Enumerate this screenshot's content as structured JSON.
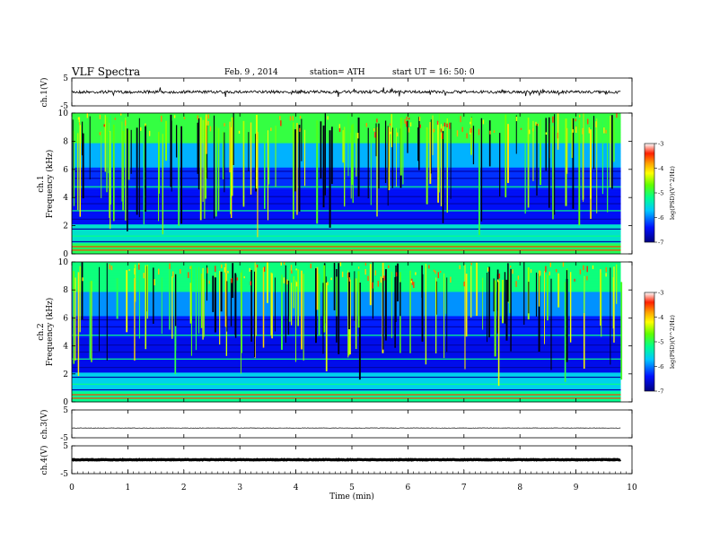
{
  "header": {
    "title": "VLF  Spectra",
    "date": "Feb. 9  , 2014",
    "station": "station= ATH",
    "start": "start  UT  =   16: 50: 0"
  },
  "xaxis": {
    "label": "Time  (min)",
    "range": [
      0,
      10
    ],
    "ticks": [
      "0",
      "1",
      "2",
      "3",
      "4",
      "5",
      "6",
      "7",
      "8",
      "9",
      "10"
    ]
  },
  "chart_data": [
    {
      "type": "line",
      "ylabel": "ch.1(V)",
      "ylim": [
        -5,
        5
      ],
      "yticks": [
        "5",
        "-5"
      ],
      "x": [
        0,
        9.8
      ],
      "y_level": 0
    },
    {
      "type": "heatmap",
      "ylabel": "ch.1\nFrequency (kHz)",
      "ylim": [
        0,
        10
      ],
      "yticks": [
        "0",
        "2",
        "4",
        "6",
        "8",
        "10"
      ],
      "x": [
        0,
        9.8
      ],
      "colorbar": {
        "label": "log(PSD)(V^2/Hz)",
        "range": [
          -7,
          -3
        ],
        "ticks": [
          "-3",
          "-4",
          "-5",
          "-6",
          "-7"
        ]
      }
    },
    {
      "type": "heatmap",
      "ylabel": "ch.2\nFrequency (kHz)",
      "ylim": [
        0,
        10
      ],
      "yticks": [
        "0",
        "2",
        "4",
        "6",
        "8",
        "10"
      ],
      "x": [
        0,
        9.8
      ],
      "colorbar": {
        "label": "log(PSD)(V^2/Hz)",
        "range": [
          -7,
          -3
        ],
        "ticks": [
          "-3",
          "-4",
          "-5",
          "-6",
          "-7"
        ]
      }
    },
    {
      "type": "line",
      "ylabel": "ch.3(V)",
      "ylim": [
        -5,
        5
      ],
      "yticks": [
        "5",
        "-5"
      ],
      "x": [
        0,
        9.8
      ],
      "y_level": -1.5
    },
    {
      "type": "line",
      "ylabel": "ch.4(V)",
      "ylim": [
        -5,
        5
      ],
      "yticks": [
        "5",
        "-5"
      ],
      "x": [
        0,
        9.8
      ],
      "y_level": 0
    }
  ]
}
